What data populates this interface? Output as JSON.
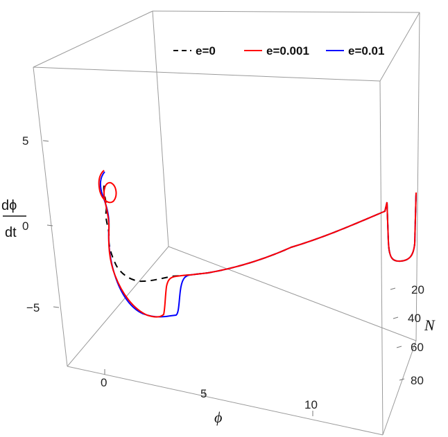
{
  "chart_data": {
    "type": "line",
    "title": "",
    "axes": {
      "x": {
        "label": "ϕ",
        "ticks": [
          "0",
          "5",
          "10"
        ]
      },
      "y": {
        "label": "N",
        "ticks": [
          "20",
          "40",
          "60",
          "80"
        ]
      },
      "z": {
        "label_top": "dϕ",
        "label_bottom": "dt",
        "ticks": [
          "5",
          "0",
          "−5"
        ]
      }
    },
    "legend": {
      "placement": "top"
    },
    "series": [
      {
        "name": "e=0",
        "color": "#000000",
        "style": "dashed"
      },
      {
        "name": "e=0.001",
        "color": "#ff0000",
        "style": "solid"
      },
      {
        "name": "e=0.01",
        "color": "#0000ff",
        "style": "solid"
      }
    ]
  }
}
